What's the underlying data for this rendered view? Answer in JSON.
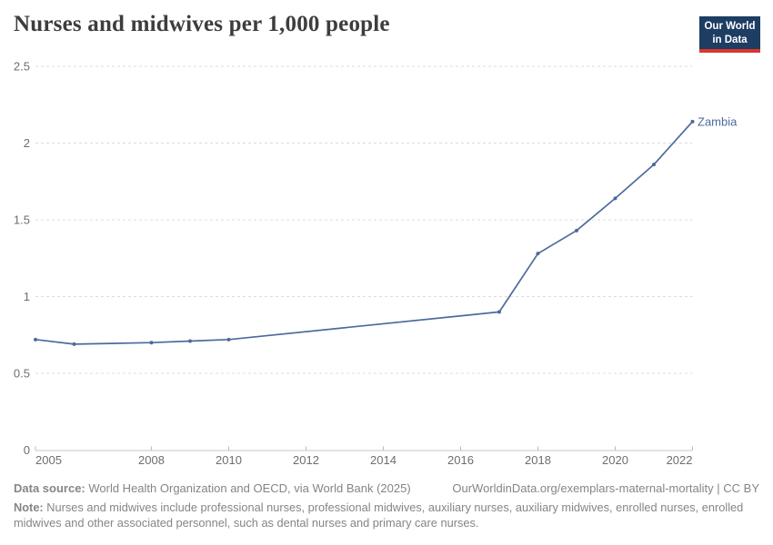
{
  "header": {
    "title": "Nurses and midwives per 1,000 people",
    "logo": {
      "line1": "Our World",
      "line2": "in Data"
    }
  },
  "chart_data": {
    "type": "line",
    "title": "Nurses and midwives per 1,000 people",
    "series": [
      {
        "name": "Zambia",
        "color": "#4C6A9C",
        "x": [
          2005,
          2006,
          2008,
          2009,
          2010,
          2017,
          2018,
          2019,
          2020,
          2021,
          2022
        ],
        "values": [
          0.72,
          0.69,
          0.7,
          0.71,
          0.72,
          0.9,
          1.28,
          1.43,
          1.64,
          1.86,
          2.14
        ]
      }
    ],
    "xlabel": "",
    "ylabel": "",
    "xlim": [
      2005,
      2022
    ],
    "ylim": [
      0,
      2.5
    ],
    "xticks": [
      2005,
      2008,
      2010,
      2012,
      2014,
      2016,
      2018,
      2020,
      2022
    ],
    "yticks": [
      0,
      0.5,
      1,
      1.5,
      2,
      2.5
    ],
    "grid": "horizontal dashed",
    "legend": "end-of-line label",
    "entity_label": "Zambia"
  },
  "colors": {
    "line": "#4C6A9C",
    "grid": "#dcdcdc",
    "axis": "#c8c8c8",
    "tick": "#bdbdbd",
    "tick-label": "#6e6e6e"
  },
  "footer": {
    "datasource_label": "Data source:",
    "datasource_text": " World Health Organization and OECD, via World Bank (2025)",
    "link": "OurWorldinData.org/exemplars-maternal-mortality | CC BY",
    "note_label": "Note:",
    "note_text": " Nurses and midwives include professional nurses, professional midwives, auxiliary nurses, auxiliary midwives, enrolled nurses, enrolled midwives and other associated personnel, such as dental nurses and primary care nurses."
  }
}
